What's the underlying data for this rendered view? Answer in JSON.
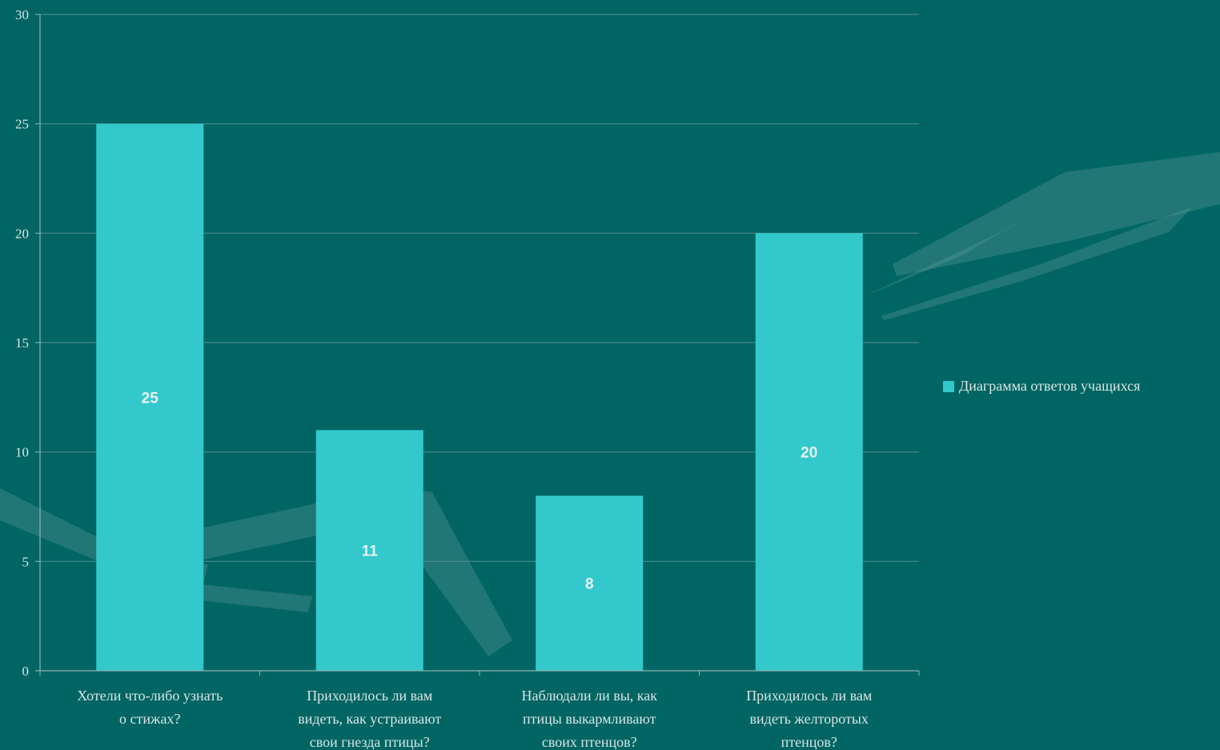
{
  "colors": {
    "background": "#006563",
    "bar": "#33c9cc",
    "grid": "#4a8a88",
    "axis": "#8fb3b1",
    "decoration": "#5f9a98"
  },
  "chart_data": {
    "type": "bar",
    "categories": [
      [
        "Хотели что-либо узнать",
        "о стижах?"
      ],
      [
        "Приходилось ли вам",
        "видеть, как устраивают",
        "свои гнезда птицы?"
      ],
      [
        "Наблюдали ли вы, как",
        "птицы выкармливают",
        "своих птенцов?"
      ],
      [
        "Приходилось ли вам",
        "видеть желторотых",
        "птенцов?"
      ]
    ],
    "series": [
      {
        "name": "Диаграмма ответов учащихся",
        "values": [
          25,
          11,
          8,
          20
        ]
      }
    ],
    "data_labels": [
      "25",
      "11",
      "8",
      "20"
    ],
    "ylim": [
      0,
      30
    ],
    "yticks": [
      "0",
      "5",
      "10",
      "15",
      "20",
      "25",
      "30"
    ],
    "grid": true,
    "legend_position": "right"
  }
}
